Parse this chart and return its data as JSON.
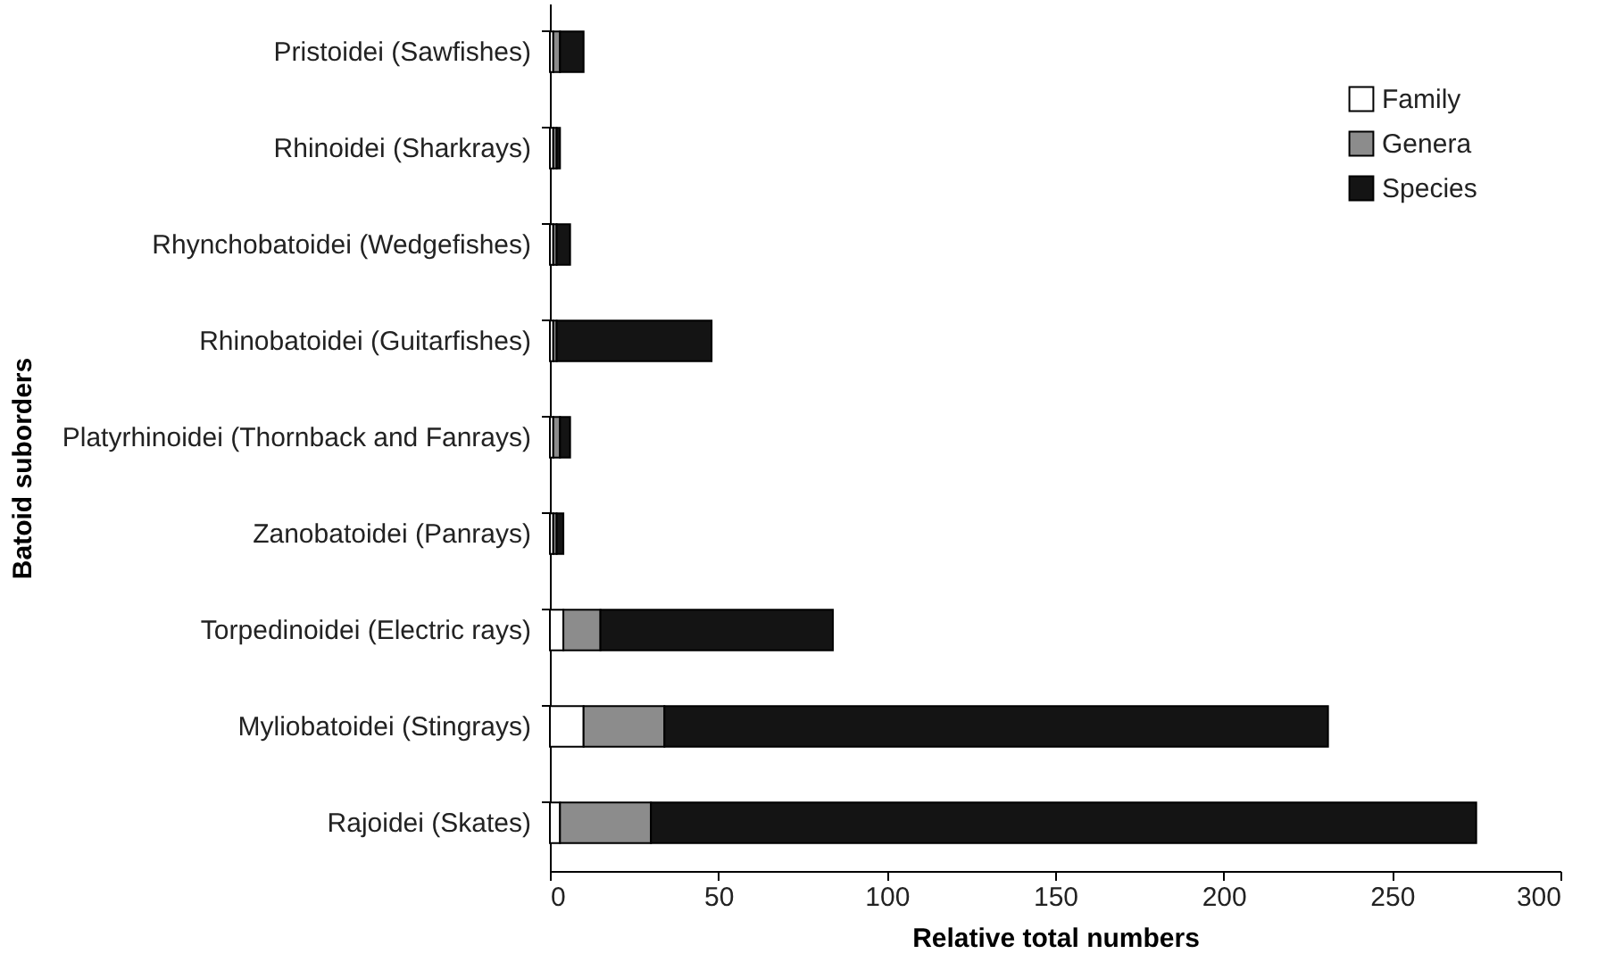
{
  "chart_data": {
    "type": "bar",
    "orientation": "horizontal",
    "stacked": true,
    "xlabel": "Relative total numbers",
    "ylabel": "Batoid suborders",
    "categories": [
      "Pristoidei (Sawfishes)",
      "Rhinoidei (Sharkrays)",
      "Rhynchobatoidei (Wedgefishes)",
      "Rhinobatoidei (Guitarfishes)",
      "Platyrhinoidei (Thornback and Fanrays)",
      "Zanobatoidei (Panrays)",
      "Torpedinoidei (Electric rays)",
      "Myliobatoidei (Stingrays)",
      "Rajoidei (Skates)"
    ],
    "series": [
      {
        "name": "Family",
        "color": "#ffffff",
        "values": [
          1,
          1,
          1,
          1,
          1,
          1,
          4,
          10,
          3
        ]
      },
      {
        "name": "Genera",
        "color": "#8c8c8c",
        "values": [
          2,
          1,
          1,
          1,
          2,
          1,
          11,
          24,
          27
        ]
      },
      {
        "name": "Species",
        "color": "#141414",
        "values": [
          7,
          1,
          4,
          46,
          3,
          2,
          69,
          197,
          245
        ]
      }
    ],
    "xlim": [
      0,
      300
    ],
    "xticks": [
      0,
      50,
      100,
      150,
      200,
      250,
      300
    ],
    "grid": false,
    "legend": "top right"
  }
}
